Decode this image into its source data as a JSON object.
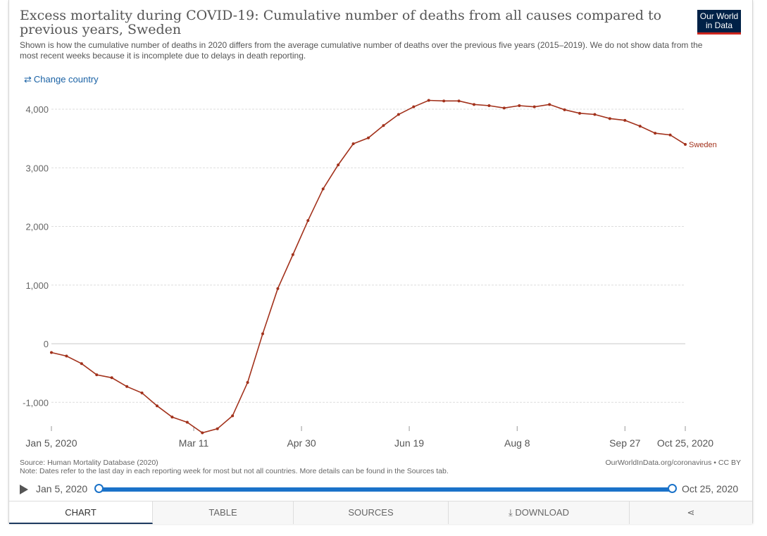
{
  "header": {
    "title": "Excess mortality during COVID-19: Cumulative number of deaths from all causes compared to previous years, Sweden",
    "subtitle": "Shown is how the cumulative number of deaths in 2020 differs from the average cumulative number of deaths over the previous five years (2015–2019). We do not show data from the most recent weeks because it is incomplete due to delays in death reporting.",
    "logo_line1": "Our World",
    "logo_line2": "in Data",
    "change_country": "Change country"
  },
  "chart_data": {
    "type": "line",
    "title": "Excess mortality during COVID-19: Cumulative number of deaths from all causes compared to previous years, Sweden",
    "x_dates": [
      "Jan 5, 2020",
      "Jan 12",
      "Jan 19",
      "Jan 26",
      "Feb 2",
      "Feb 9",
      "Feb 16",
      "Feb 23",
      "Mar 1",
      "Mar 8",
      "Mar 15",
      "Mar 22",
      "Mar 29",
      "Apr 5",
      "Apr 12",
      "Apr 19",
      "Apr 26",
      "May 3",
      "May 10",
      "May 17",
      "May 24",
      "May 31",
      "Jun 7",
      "Jun 14",
      "Jun 21",
      "Jun 28",
      "Jul 5",
      "Jul 12",
      "Jul 19",
      "Jul 26",
      "Aug 2",
      "Aug 9",
      "Aug 16",
      "Aug 23",
      "Aug 30",
      "Sep 6",
      "Sep 13",
      "Sep 20",
      "Sep 27",
      "Oct 4",
      "Oct 11",
      "Oct 18",
      "Oct 25, 2020"
    ],
    "series": [
      {
        "name": "Sweden",
        "color": "#a2311b",
        "values": [
          -150,
          -210,
          -340,
          -530,
          -580,
          -730,
          -840,
          -1060,
          -1250,
          -1340,
          -1520,
          -1450,
          -1230,
          -660,
          170,
          940,
          1520,
          2100,
          2640,
          3050,
          3410,
          3510,
          3720,
          3910,
          4040,
          4150,
          4140,
          4140,
          4080,
          4060,
          4020,
          4060,
          4040,
          4080,
          3990,
          3930,
          3910,
          3840,
          3810,
          3710,
          3590,
          3560,
          3400
        ]
      }
    ],
    "y_ticks": [
      -1000,
      0,
      1000,
      2000,
      3000,
      4000
    ],
    "y_tick_labels": [
      "-1,000",
      "0",
      "1,000",
      "2,000",
      "3,000",
      "4,000"
    ],
    "x_tick_labels": [
      "Jan 5, 2020",
      "Mar 11",
      "Apr 30",
      "Jun 19",
      "Aug 8",
      "Sep 27",
      "Oct 25, 2020"
    ],
    "ylim": [
      -1550,
      4200
    ],
    "grid": true
  },
  "footer": {
    "source": "Source: Human Mortality Database (2020)",
    "note": "Note: Dates refer to the last day in each reporting week for most but not all countries. More details can be found in the Sources tab.",
    "credit": "OurWorldInData.org/coronavirus • CC BY"
  },
  "timeline": {
    "start_label": "Jan 5, 2020",
    "end_label": "Oct 25, 2020",
    "start_position": 0,
    "end_position": 1
  },
  "tabs": [
    {
      "label": "CHART",
      "active": true
    },
    {
      "label": "TABLE",
      "active": false
    },
    {
      "label": "SOURCES",
      "active": false
    },
    {
      "label": "DOWNLOAD",
      "active": false
    },
    {
      "label": "",
      "active": false
    }
  ],
  "colors": {
    "line": "#a2311b",
    "accent": "#1a72c9",
    "logo_bg": "#002147",
    "logo_bar": "#ce261e"
  }
}
